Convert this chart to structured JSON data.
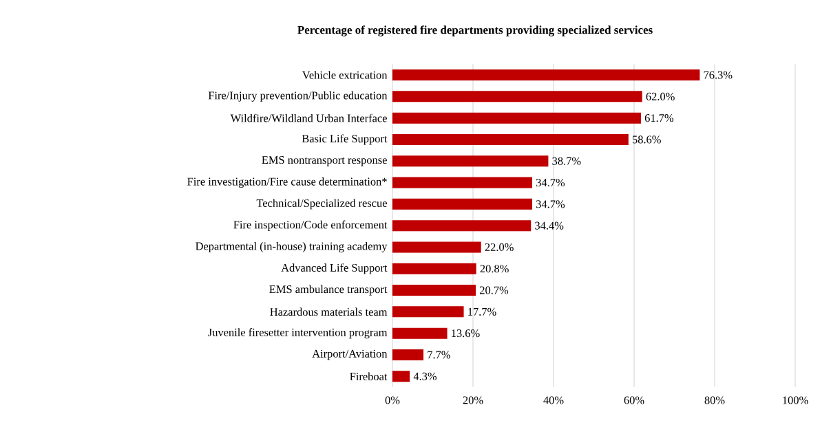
{
  "chart_data": {
    "type": "bar",
    "orientation": "horizontal",
    "title": "Percentage of registered fire departments providing specialized services",
    "categories": [
      "Vehicle extrication",
      "Fire/Injury prevention/Public education",
      "Wildfire/Wildland Urban Interface",
      "Basic Life Support",
      "EMS nontransport response",
      "Fire investigation/Fire cause determination*",
      "Technical/Specialized rescue",
      "Fire inspection/Code enforcement",
      "Departmental (in-house) training academy",
      "Advanced Life Support",
      "EMS ambulance transport",
      "Hazardous materials team",
      "Juvenile firesetter intervention program",
      "Airport/Aviation",
      "Fireboat"
    ],
    "values": [
      76.3,
      62.0,
      61.7,
      58.6,
      38.7,
      34.7,
      34.7,
      34.4,
      22.0,
      20.8,
      20.7,
      17.7,
      13.6,
      7.7,
      4.3
    ],
    "value_labels": [
      "76.3%",
      "62.0%",
      "61.7%",
      "58.6%",
      "38.7%",
      "34.7%",
      "34.7%",
      "34.4%",
      "22.0%",
      "20.8%",
      "20.7%",
      "17.7%",
      "13.6%",
      "7.7%",
      "4.3%"
    ],
    "color": "#c00000",
    "xlim": [
      0,
      100
    ],
    "xticks": [
      {
        "value": 0,
        "label": "0%"
      },
      {
        "value": 20,
        "label": "20%"
      },
      {
        "value": 40,
        "label": "40%"
      },
      {
        "value": 60,
        "label": "60%"
      },
      {
        "value": 80,
        "label": "80%"
      },
      {
        "value": 100,
        "label": "100%"
      }
    ],
    "grid": "x"
  }
}
